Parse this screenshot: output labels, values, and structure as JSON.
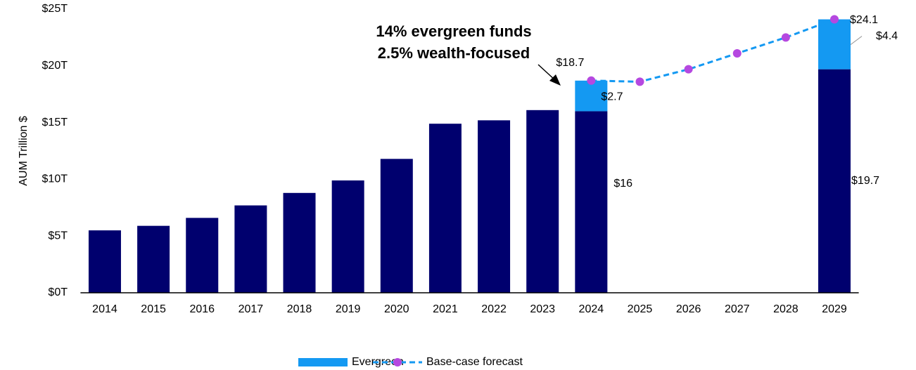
{
  "chart_data": {
    "type": "bar",
    "stacked": true,
    "ylabel": "AUM Trillion $",
    "annotation": [
      "14% evergreen funds",
      "2.5% wealth-focused"
    ],
    "categories": [
      "2014",
      "2015",
      "2016",
      "2017",
      "2018",
      "2019",
      "2020",
      "2021",
      "2022",
      "2023",
      "2024",
      "2025",
      "2026",
      "2027",
      "2028",
      "2029"
    ],
    "ylim": [
      0,
      25
    ],
    "yticks": [
      {
        "value": 0,
        "label": "$0T"
      },
      {
        "value": 5,
        "label": "$5T"
      },
      {
        "value": 10,
        "label": "$10T"
      },
      {
        "value": 15,
        "label": "$15T"
      },
      {
        "value": 20,
        "label": "$20T"
      },
      {
        "value": 25,
        "label": "$25T"
      }
    ],
    "series": [
      {
        "color": "#00006e",
        "type": "bar",
        "values": [
          5.5,
          5.9,
          6.6,
          7.7,
          8.8,
          9.9,
          11.8,
          14.9,
          15.2,
          16.1,
          16,
          null,
          null,
          null,
          null,
          19.7
        ],
        "value_labels": [
          null,
          null,
          null,
          null,
          null,
          null,
          null,
          null,
          null,
          null,
          "$16",
          null,
          null,
          null,
          null,
          "$19.7"
        ]
      },
      {
        "name": "Evergreen",
        "color": "#1499f2",
        "type": "bar",
        "values": [
          null,
          null,
          null,
          null,
          null,
          null,
          null,
          null,
          null,
          null,
          2.7,
          null,
          null,
          null,
          null,
          4.4
        ],
        "value_labels": [
          null,
          null,
          null,
          null,
          null,
          null,
          null,
          null,
          null,
          null,
          "$2.7",
          null,
          null,
          null,
          null,
          "$4.4"
        ]
      },
      {
        "name": "Base-case forecast",
        "color": "#1499f2",
        "marker_color": "#b548e0",
        "type": "line",
        "dashed": true,
        "values": [
          null,
          null,
          null,
          null,
          null,
          null,
          null,
          null,
          null,
          null,
          18.7,
          18.6,
          19.7,
          21.1,
          22.5,
          24.1
        ],
        "value_labels": [
          null,
          null,
          null,
          null,
          null,
          null,
          null,
          null,
          null,
          null,
          "$18.7",
          null,
          null,
          null,
          null,
          "$24.1"
        ]
      }
    ]
  }
}
